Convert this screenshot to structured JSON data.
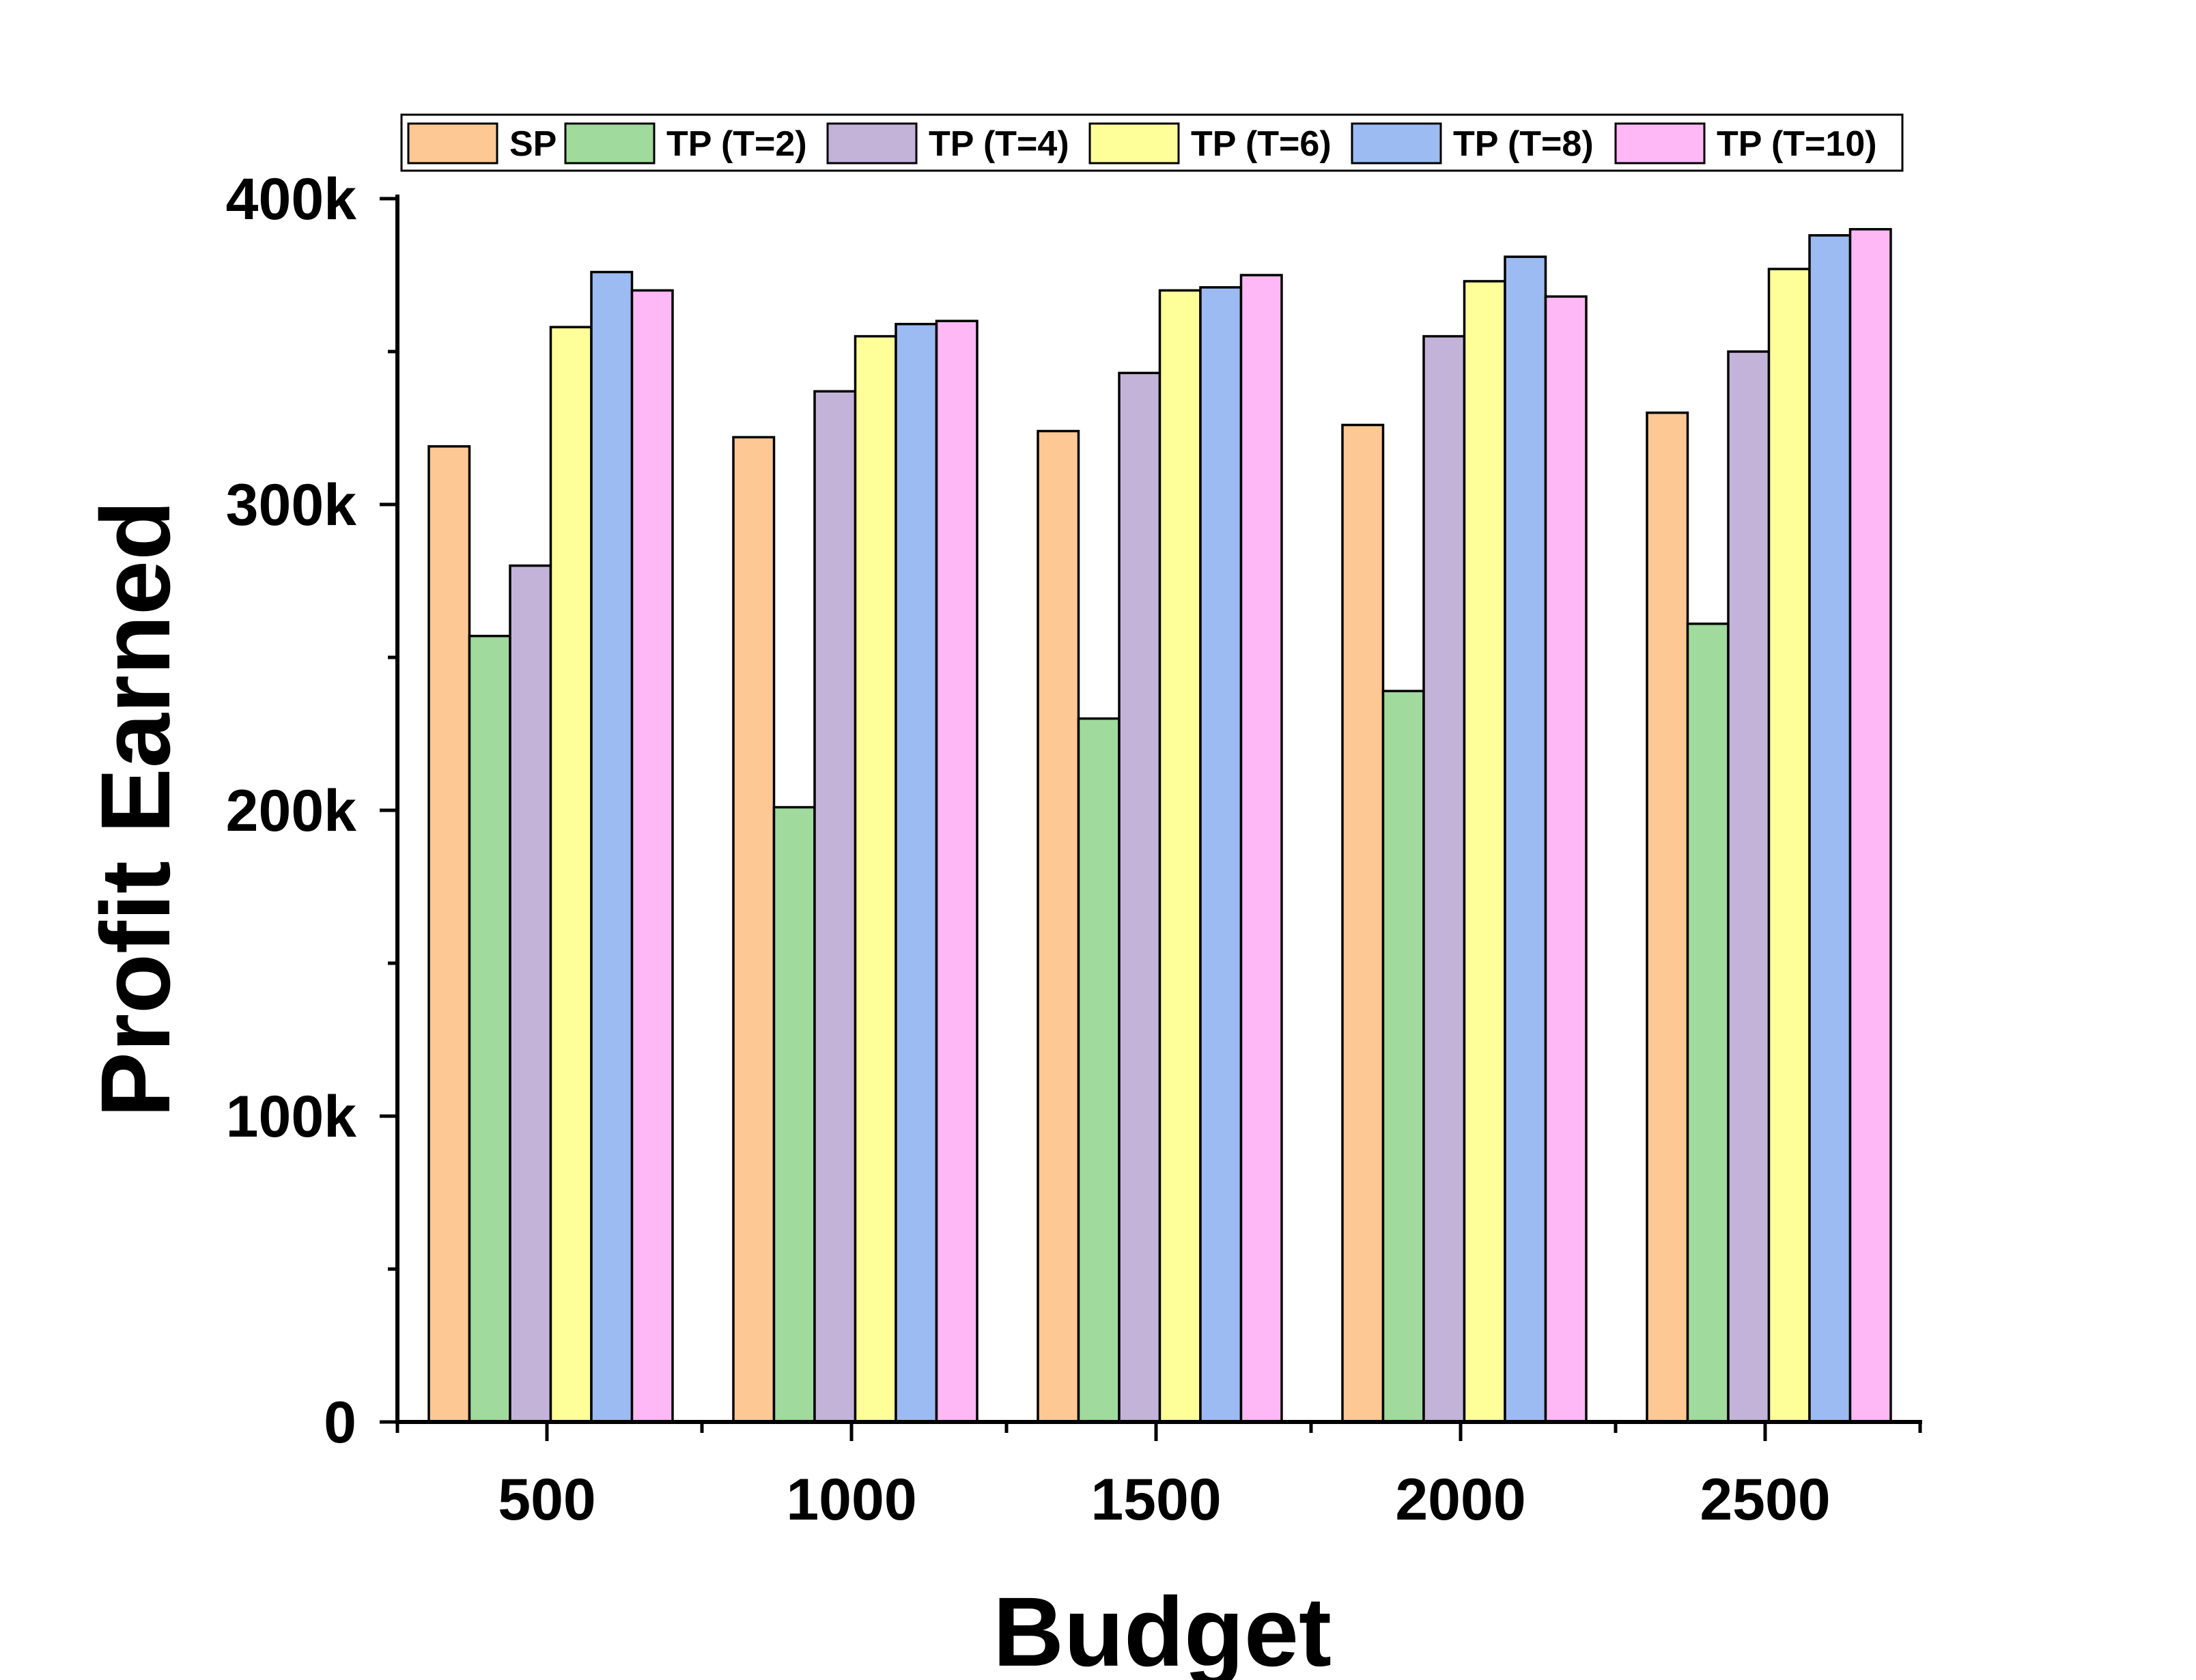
{
  "chart_data": {
    "type": "bar",
    "title": "",
    "xlabel": "Budget",
    "ylabel": "Profit Earned",
    "categories": [
      "500",
      "1000",
      "1500",
      "2000",
      "2500"
    ],
    "ylim": [
      0,
      400000
    ],
    "yticks": [
      {
        "value": 0,
        "label": "0"
      },
      {
        "value": 100000,
        "label": "100k"
      },
      {
        "value": 200000,
        "label": "200k"
      },
      {
        "value": 300000,
        "label": "300k"
      },
      {
        "value": 400000,
        "label": "400k"
      }
    ],
    "legend_position": "top",
    "grid": false,
    "series": [
      {
        "name": "SP",
        "color": "#FDC893",
        "values": [
          319000,
          322000,
          324000,
          326000,
          330000
        ]
      },
      {
        "name": "TP (T=2)",
        "color": "#A0DA9C",
        "values": [
          257000,
          201000,
          230000,
          239000,
          261000
        ]
      },
      {
        "name": "TP (T=4)",
        "color": "#C4B3D9",
        "values": [
          280000,
          337000,
          343000,
          355000,
          350000
        ]
      },
      {
        "name": "TP (T=6)",
        "color": "#FFFF99",
        "values": [
          358000,
          355000,
          370000,
          373000,
          377000
        ]
      },
      {
        "name": "TP (T=8)",
        "color": "#9CBBF2",
        "values": [
          376000,
          359000,
          371000,
          381000,
          388000
        ]
      },
      {
        "name": "TP (T=10)",
        "color": "#FDB8F5",
        "values": [
          370000,
          360000,
          375000,
          368000,
          390000
        ]
      }
    ]
  }
}
